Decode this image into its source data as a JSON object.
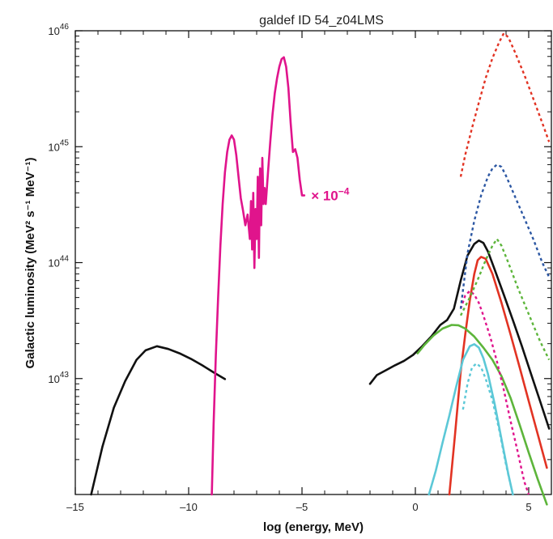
{
  "chart_data": {
    "type": "line",
    "title": "galdef ID 54_z04LMS",
    "xlabel": "log (energy, MeV)",
    "ylabel": "Galactic luminosity (MeV² s⁻¹ MeV⁻¹)",
    "xlim": [
      -15,
      6
    ],
    "ylim": [
      1e+42,
      1e+46
    ],
    "yscale": "log",
    "x_ticks": [
      -15,
      -10,
      -5,
      0,
      5
    ],
    "x_tick_labels": [
      "–15",
      "–10",
      "–5",
      "0",
      "5"
    ],
    "y_ticks": [
      1e+43,
      1e+44,
      1e+45,
      1e+46
    ],
    "y_tick_labels": [
      {
        "base": "10",
        "exp": "43"
      },
      {
        "base": "10",
        "exp": "44"
      },
      {
        "base": "10",
        "exp": "45"
      },
      {
        "base": "10",
        "exp": "46"
      }
    ],
    "grid": false,
    "annotation": {
      "text": "× 10",
      "exp": "−4",
      "x": -4.6,
      "y": 3.8e+44,
      "color": "#e0148c"
    },
    "series": [
      {
        "color": "#111111",
        "style": "solid",
        "x": [
          -14.3,
          -13.8,
          -13.3,
          -12.8,
          -12.3,
          -11.9,
          -11.4,
          -10.9,
          -10.4,
          -9.9,
          -9.4,
          -8.9,
          -8.4
        ],
        "y": [
          1e+42,
          2.6e+42,
          5.6e+42,
          9.5e+42,
          1.45e+43,
          1.75e+43,
          1.9e+43,
          1.8e+43,
          1.65e+43,
          1.48e+43,
          1.3e+43,
          1.13e+43,
          9.9e+42
        ]
      },
      {
        "color": "#111111",
        "style": "solid",
        "x": [
          -2.0,
          -1.7,
          -1.3,
          -0.9,
          -0.5,
          -0.1,
          0.3,
          0.7,
          1.1,
          1.4,
          1.7,
          2.0,
          2.3,
          2.6,
          2.8,
          3.0,
          3.2,
          3.5,
          3.9,
          4.3,
          4.7,
          5.1,
          5.5,
          5.9
        ],
        "y": [
          9e+42,
          1.07e+43,
          1.18e+43,
          1.3e+43,
          1.42e+43,
          1.6e+43,
          1.9e+43,
          2.3e+43,
          2.9e+43,
          3.2e+43,
          4e+43,
          7e+43,
          1.15e+44,
          1.45e+44,
          1.55e+44,
          1.48e+44,
          1.25e+44,
          8.7e+43,
          5.3e+43,
          3.2e+43,
          1.9e+43,
          1.1e+43,
          6.4e+42,
          3.7e+42
        ]
      },
      {
        "color": "#e23323",
        "style": "solid",
        "x": [
          1.5,
          1.75,
          2.0,
          2.2,
          2.4,
          2.6,
          2.75,
          2.9,
          3.1,
          3.4,
          3.8,
          4.2,
          4.6,
          5.0,
          5.4,
          5.8
        ],
        "y": [
          1e+42,
          3.3e+42,
          1.15e+43,
          2.4e+43,
          4.7e+43,
          8e+43,
          1.05e+44,
          1.12e+44,
          1.08e+44,
          8e+43,
          4.5e+43,
          2.4e+43,
          1.25e+43,
          6.4e+42,
          3.3e+42,
          1.7e+42
        ]
      },
      {
        "color": "#5db53b",
        "style": "solid",
        "x": [
          0.1,
          0.4,
          0.8,
          1.2,
          1.6,
          1.9,
          2.2,
          2.6,
          3.0,
          3.4,
          3.8,
          4.2,
          4.6,
          5.0,
          5.4,
          5.8
        ],
        "y": [
          1.65e+43,
          1.95e+43,
          2.35e+43,
          2.7e+43,
          2.9e+43,
          2.88e+43,
          2.7e+43,
          2.3e+43,
          1.85e+43,
          1.45e+43,
          1.05e+43,
          6.8e+42,
          4e+42,
          2.3e+42,
          1.35e+42,
          8.2e+41
        ]
      },
      {
        "color": "#5cc8d7",
        "style": "solid",
        "x": [
          0.6,
          0.9,
          1.2,
          1.5,
          1.8,
          2.1,
          2.4,
          2.6,
          2.8,
          3.0,
          3.2,
          3.5,
          3.8,
          4.1,
          4.3
        ],
        "y": [
          1e+42,
          1.6e+42,
          2.8e+42,
          4.8e+42,
          8.5e+42,
          1.45e+43,
          1.9e+43,
          1.98e+43,
          1.85e+43,
          1.5e+43,
          1.1e+43,
          6e+42,
          3e+42,
          1.5e+42,
          1e+42
        ]
      },
      {
        "color": "#5cc8d7",
        "style": "dotted",
        "x": [
          2.1,
          2.3,
          2.5,
          2.7,
          2.9,
          3.1,
          3.4,
          3.7,
          4.0,
          4.3
        ],
        "y": [
          5.4e+42,
          9e+42,
          1.25e+43,
          1.35e+43,
          1.25e+43,
          1e+43,
          6.5e+42,
          3.6e+42,
          1.8e+42,
          1e+42
        ]
      },
      {
        "color": "#e0148c",
        "style": "dotted",
        "x": [
          2.0,
          2.2,
          2.4,
          2.6,
          2.8,
          3.0,
          3.3,
          3.6,
          3.9,
          4.2,
          4.5,
          4.8,
          5.0
        ],
        "y": [
          4e+43,
          5.2e+43,
          5.7e+43,
          5.3e+43,
          4.5e+43,
          3.5e+43,
          2.3e+43,
          1.4e+43,
          8e+42,
          4.3e+42,
          2.4e+42,
          1.3e+42,
          1e+42
        ]
      },
      {
        "color": "#5db53b",
        "style": "dotted",
        "x": [
          2.0,
          2.4,
          2.8,
          3.1,
          3.4,
          3.6,
          3.8,
          4.1,
          4.5,
          5.0,
          5.5,
          5.9
        ],
        "y": [
          3.5e+43,
          5e+43,
          7.5e+43,
          1.05e+44,
          1.4e+44,
          1.6e+44,
          1.4e+44,
          1e+44,
          6.2e+43,
          3.6e+43,
          2.1e+43,
          1.45e+43
        ]
      },
      {
        "color": "#2c57a3",
        "style": "dotted",
        "x": [
          2.0,
          2.3,
          2.6,
          2.9,
          3.2,
          3.4,
          3.6,
          3.8,
          4.0,
          4.3,
          4.7,
          5.2,
          5.6,
          5.9
        ],
        "y": [
          4e+43,
          1.2e+44,
          2.3e+44,
          3.8e+44,
          5.5e+44,
          6.5e+44,
          7e+44,
          6.7e+44,
          5.6e+44,
          4.1e+44,
          2.7e+44,
          1.6e+44,
          1e+44,
          7.5e+43
        ]
      },
      {
        "color": "#e23323",
        "style": "dotted",
        "x": [
          2.0,
          2.2,
          2.5,
          2.8,
          3.1,
          3.4,
          3.7,
          3.9,
          4.1,
          4.4,
          4.8,
          5.2,
          5.6,
          5.9
        ],
        "y": [
          5.5e+44,
          8.5e+44,
          1.45e+45,
          2.4e+45,
          3.9e+45,
          5.8e+45,
          8e+45,
          9.5e+45,
          8.8e+45,
          6.5e+45,
          4.2e+45,
          2.6e+45,
          1.6e+45,
          1.1e+45
        ]
      },
      {
        "color": "#e0148c",
        "style": "solid",
        "x": [
          -8.98,
          -8.9,
          -8.8,
          -8.7,
          -8.6,
          -8.5,
          -8.4,
          -8.3,
          -8.2,
          -8.1,
          -8.0,
          -7.9,
          -7.8,
          -7.7,
          -7.6,
          -7.5,
          -7.4,
          -7.3,
          -7.25,
          -7.2,
          -7.15,
          -7.1,
          -7.05,
          -7.0,
          -6.95,
          -6.9,
          -6.85,
          -6.8,
          -6.75,
          -6.7,
          -6.65,
          -6.6,
          -6.5,
          -6.4,
          -6.3,
          -6.2,
          -6.1,
          -6.0,
          -5.9,
          -5.8,
          -5.7,
          -5.6,
          -5.5,
          -5.4,
          -5.3,
          -5.2,
          -5.1,
          -5.0,
          -4.9
        ],
        "y": [
          1e+42,
          4e+42,
          1.6e+43,
          5e+43,
          1.4e+44,
          3.2e+44,
          6e+44,
          9e+44,
          1.15e+45,
          1.25e+45,
          1.15e+45,
          8.5e+44,
          5.5e+44,
          3.6e+44,
          2.8e+44,
          2.1e+44,
          2.6e+44,
          1.6e+44,
          3.4e+44,
          1.3e+44,
          4e+44,
          9e+43,
          2.9e+44,
          1.6e+44,
          5.5e+44,
          1.1e+44,
          6.5e+44,
          2.1e+44,
          8e+44,
          3.2e+44,
          4.4e+44,
          3.2e+44,
          6e+44,
          1.1e+45,
          1.9e+45,
          2.9e+45,
          3.9e+45,
          4.9e+45,
          5.7e+45,
          5.9e+45,
          4.9e+45,
          3.2e+45,
          1.6e+45,
          9e+44,
          9.5e+44,
          8e+44,
          5.2e+44,
          3.8e+44,
          3.8e+44
        ]
      }
    ]
  }
}
